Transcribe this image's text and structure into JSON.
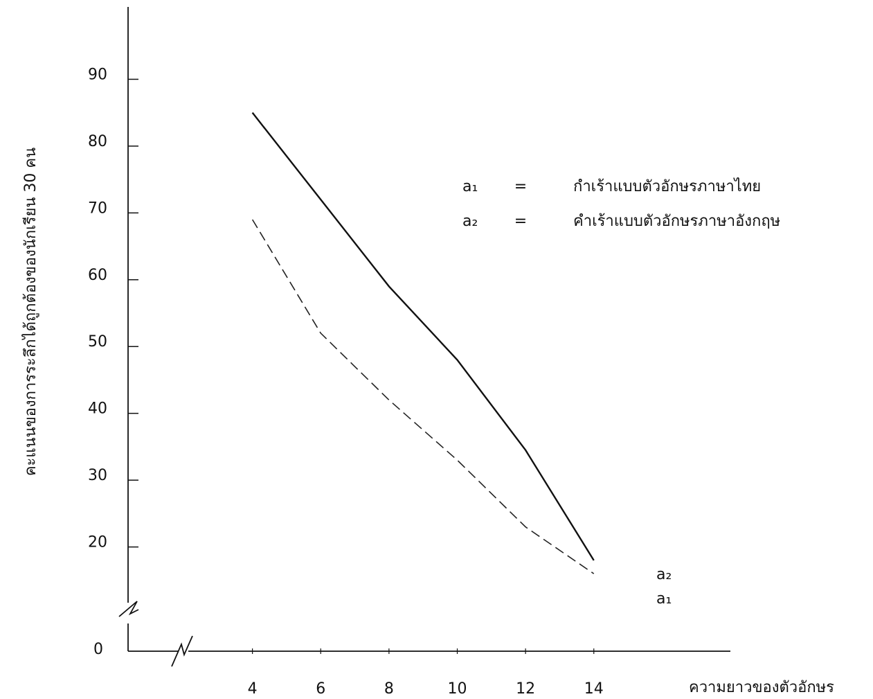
{
  "chart_data": {
    "type": "line",
    "y_label": "คะแนนของการระลึกได้ถูกต้องของนักเรียน 30 คน",
    "x_label": "ความยาวของตัวอักษร",
    "x": [
      4,
      6,
      8,
      10,
      12,
      14
    ],
    "series": [
      {
        "name": "a₁",
        "legend_text": "กำเร้าแบบตัวอักษรภาษาไทย",
        "color": "#111111",
        "dash": false,
        "values": [
          85,
          72,
          59,
          48,
          34.5,
          18
        ]
      },
      {
        "name": "a₂",
        "legend_text": "คำเร้าแบบตัวอักษรภาษาอังกฤษ",
        "color": "#222222",
        "dash": true,
        "values": [
          69,
          52,
          42,
          33,
          23,
          16
        ]
      }
    ],
    "xlim": [
      2,
      18
    ],
    "xticks": [
      4,
      6,
      8,
      10,
      12,
      14
    ],
    "ylim": [
      10,
      100
    ],
    "yticks": [
      20,
      30,
      40,
      50,
      60,
      70,
      80,
      90
    ],
    "origin_label": 0,
    "legend_sign": "="
  }
}
